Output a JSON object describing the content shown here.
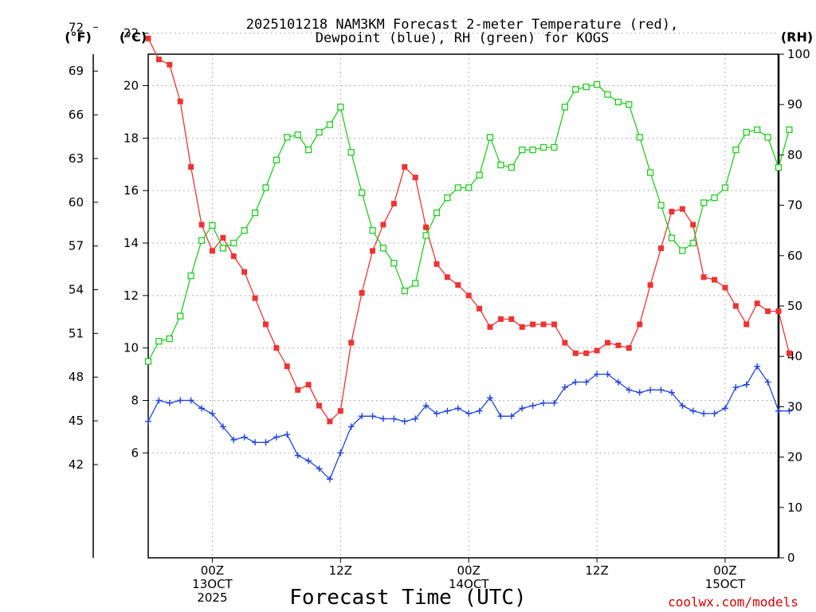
{
  "chart_data": {
    "type": "line",
    "title_line1": "2025101218 NAM3KM Forecast 2-meter Temperature (red),",
    "title_line2": "Dewpoint (blue), RH (green) for KOGS",
    "xlabel": "Forecast Time (UTC)",
    "credit": "coolwx.com/models",
    "unit_left_outer": "(°F)",
    "unit_left_inner": "(°C)",
    "unit_right": "(RH)",
    "x_range_hours": [
      18,
      77
    ],
    "celsius_range": [
      2,
      21.2
    ],
    "rh_range": [
      0,
      100
    ],
    "x_ticks": [
      {
        "hour": 24,
        "line1": "00Z",
        "line2": "13OCT",
        "line3": "2025"
      },
      {
        "hour": 36,
        "line1": "12Z",
        "line2": "",
        "line3": ""
      },
      {
        "hour": 48,
        "line1": "00Z",
        "line2": "14OCT",
        "line3": ""
      },
      {
        "hour": 60,
        "line1": "12Z",
        "line2": "",
        "line3": ""
      },
      {
        "hour": 72,
        "line1": "00Z",
        "line2": "15OCT",
        "line3": ""
      }
    ],
    "celsius_ticks": [
      "6",
      "8",
      "10",
      "12",
      "14",
      "16",
      "18",
      "20",
      "22"
    ],
    "fahrenheit_ticks": [
      "42",
      "45",
      "48",
      "51",
      "54",
      "57",
      "60",
      "63",
      "66",
      "69",
      "72"
    ],
    "rh_ticks": [
      "0",
      "10",
      "20",
      "30",
      "40",
      "50",
      "60",
      "70",
      "80",
      "90",
      "100"
    ],
    "series": [
      {
        "name": "Temperature",
        "units": "C",
        "color": "#ee3333",
        "marker": "filled-square",
        "start_hour": 18,
        "values": [
          21.8,
          21.0,
          20.8,
          19.4,
          16.9,
          14.7,
          13.7,
          14.2,
          13.5,
          12.9,
          11.9,
          10.9,
          10.0,
          9.3,
          8.4,
          8.6,
          7.8,
          7.2,
          7.6,
          10.2,
          12.1,
          13.7,
          14.7,
          15.5,
          16.9,
          16.5,
          14.6,
          13.2,
          12.7,
          12.4,
          12.0,
          11.5,
          10.8,
          11.1,
          11.1,
          10.8,
          10.9,
          10.9,
          10.9,
          10.2,
          9.8,
          9.8,
          9.9,
          10.2,
          10.1,
          10.0,
          10.9,
          12.4,
          13.8,
          15.2,
          15.3,
          14.7,
          12.7,
          12.6,
          12.3,
          11.6,
          10.9,
          11.7,
          11.4,
          11.4,
          9.8
        ]
      },
      {
        "name": "Dewpoint",
        "units": "C",
        "color": "#2244dd",
        "marker": "plus",
        "start_hour": 18,
        "values": [
          7.2,
          8.0,
          7.9,
          8.0,
          8.0,
          7.7,
          7.5,
          7.0,
          6.5,
          6.6,
          6.4,
          6.4,
          6.6,
          6.7,
          5.9,
          5.7,
          5.4,
          5.0,
          6.0,
          7.0,
          7.4,
          7.4,
          7.3,
          7.3,
          7.2,
          7.3,
          7.8,
          7.5,
          7.6,
          7.7,
          7.5,
          7.6,
          8.1,
          7.4,
          7.4,
          7.7,
          7.8,
          7.9,
          7.9,
          8.5,
          8.7,
          8.7,
          9.0,
          9.0,
          8.7,
          8.4,
          8.3,
          8.4,
          8.4,
          8.3,
          7.8,
          7.6,
          7.5,
          7.5,
          7.7,
          8.5,
          8.6,
          9.3,
          8.7,
          7.6,
          7.6
        ]
      },
      {
        "name": "Relative Humidity",
        "units": "%",
        "color": "#22cc22",
        "marker": "open-square",
        "start_hour": 18,
        "values": [
          39,
          43,
          43.5,
          48,
          56,
          63,
          66,
          61.5,
          62.5,
          65,
          68.5,
          73.5,
          79,
          83.5,
          84,
          81,
          84.5,
          86,
          89.5,
          80.5,
          72.5,
          65,
          61.5,
          58.5,
          53,
          54.5,
          64,
          68.5,
          71.5,
          73.5,
          73.5,
          76,
          83.5,
          78,
          77.5,
          81,
          81,
          81.5,
          81.5,
          89.5,
          93,
          93.5,
          94,
          92,
          90.5,
          90,
          83.5,
          76.5,
          70,
          63.5,
          61,
          62.5,
          70.5,
          71.5,
          73.5,
          81,
          84.5,
          85,
          83.5,
          77.5,
          85
        ]
      }
    ]
  }
}
